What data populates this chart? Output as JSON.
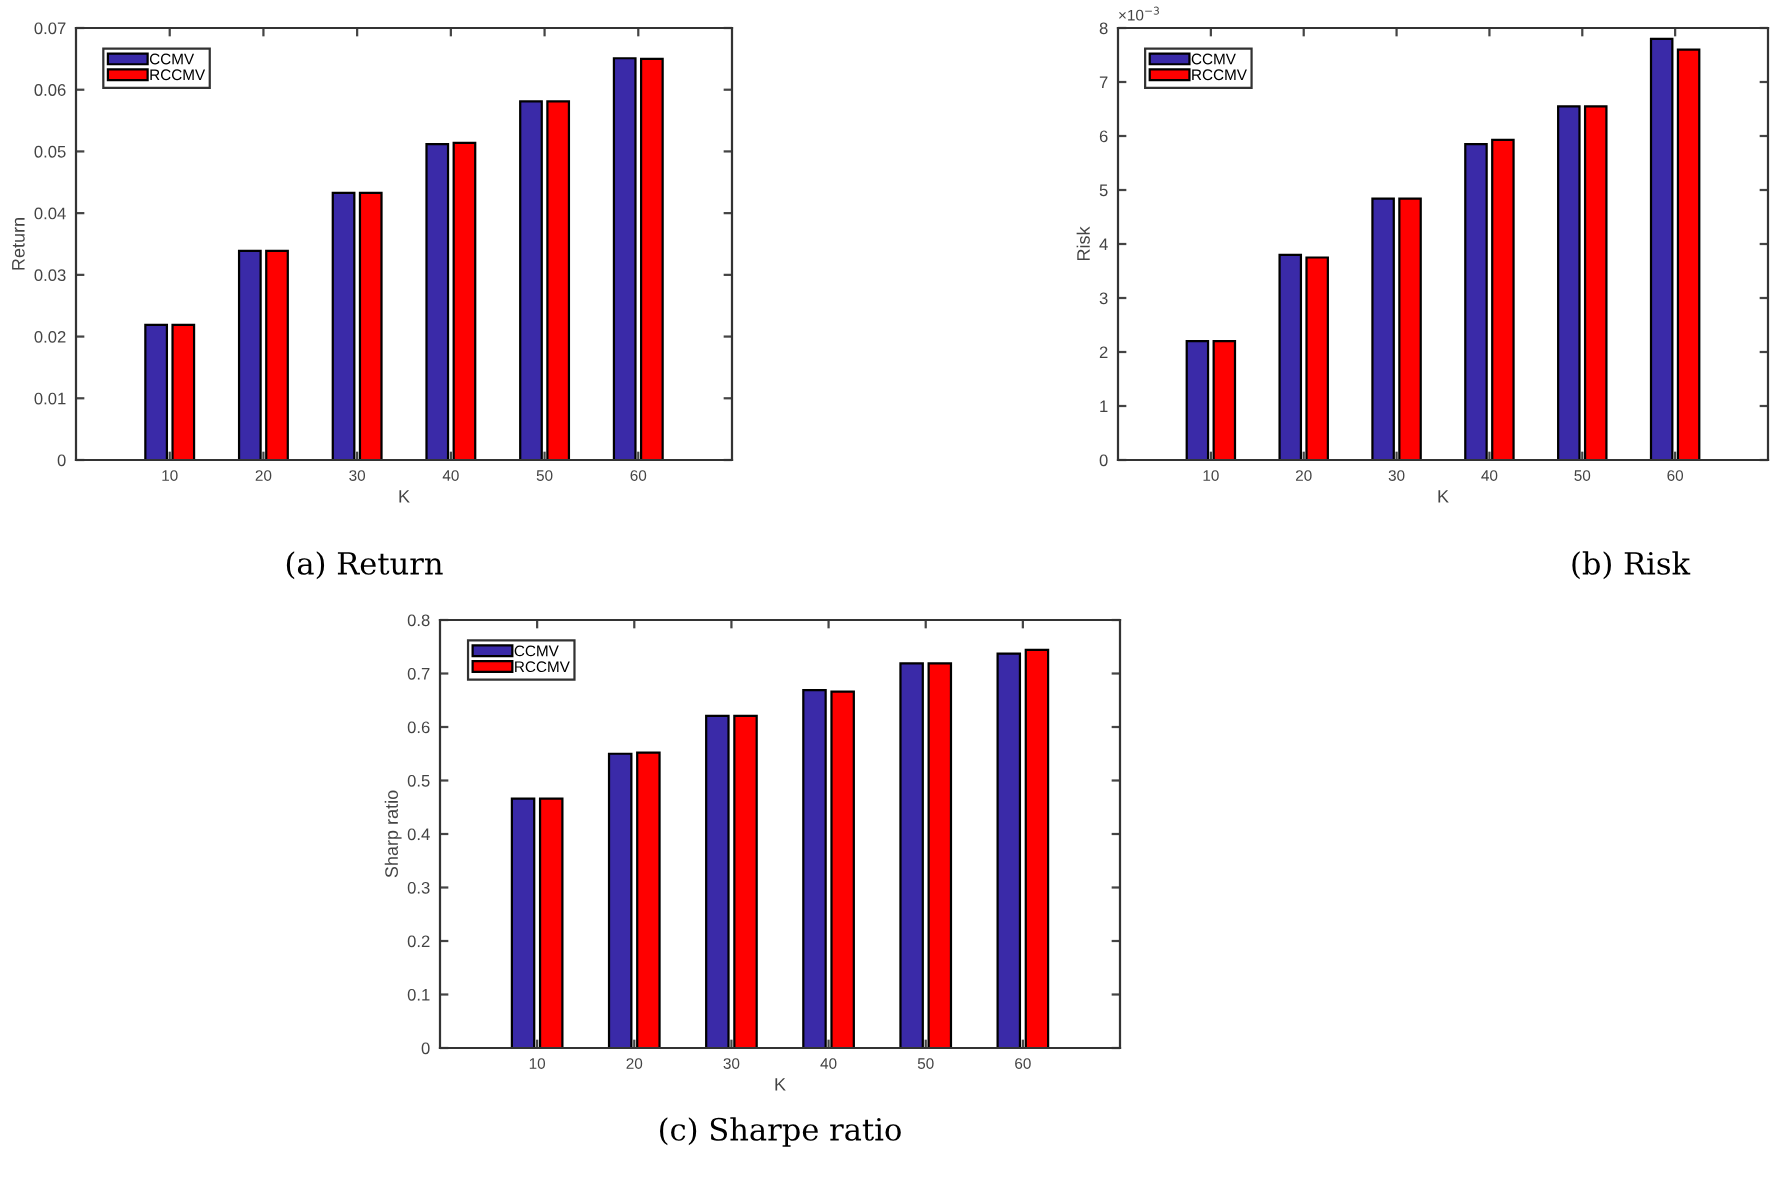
{
  "chart_data": [
    {
      "type": "bar",
      "xlabel": "K",
      "ylabel": "Return",
      "categories": [
        "10",
        "20",
        "30",
        "40",
        "50",
        "60"
      ],
      "series": [
        {
          "name": "CCMV",
          "color": "#3a2aa8",
          "values": [
            0.0219,
            0.0339,
            0.0433,
            0.0512,
            0.0581,
            0.0651
          ]
        },
        {
          "name": "RCCMV",
          "color": "#ff0000",
          "values": [
            0.0219,
            0.0339,
            0.0433,
            0.0514,
            0.0581,
            0.065
          ]
        }
      ],
      "ylim": [
        0,
        0.07
      ],
      "yticks": [
        0,
        0.01,
        0.02,
        0.03,
        0.04,
        0.05,
        0.06,
        0.07
      ],
      "legend": "top left",
      "grid": false,
      "annotations": [
        "(a) Return"
      ]
    },
    {
      "type": "bar",
      "xlabel": "K",
      "ylabel": "Risk",
      "categories": [
        "10",
        "20",
        "30",
        "40",
        "50",
        "60"
      ],
      "series": [
        {
          "name": "CCMV",
          "color": "#3a2aa8",
          "values": [
            2.2,
            3.8,
            4.84,
            5.85,
            6.55,
            7.8
          ]
        },
        {
          "name": "RCCMV",
          "color": "#ff0000",
          "values": [
            2.2,
            3.75,
            4.84,
            5.93,
            6.55,
            7.6
          ]
        }
      ],
      "ylim": [
        0,
        8
      ],
      "yticks": [
        0,
        1,
        2,
        3,
        4,
        5,
        6,
        7,
        8
      ],
      "legend": "top left",
      "grid": false,
      "annotations": [
        "(b) Risk",
        "×10$^{−3}$"
      ]
    },
    {
      "type": "bar",
      "xlabel": "K",
      "ylabel": "Sharp ratio",
      "categories": [
        "10",
        "20",
        "30",
        "40",
        "50",
        "60"
      ],
      "series": [
        {
          "name": "CCMV",
          "color": "#3a2aa8",
          "values": [
            0.466,
            0.55,
            0.621,
            0.669,
            0.719,
            0.737
          ]
        },
        {
          "name": "RCCMV",
          "color": "#ff0000",
          "values": [
            0.466,
            0.552,
            0.621,
            0.666,
            0.719,
            0.744
          ]
        }
      ],
      "ylim": [
        0,
        0.8
      ],
      "yticks": [
        0,
        0.1,
        0.2,
        0.3,
        0.4,
        0.5,
        0.6,
        0.7,
        0.8
      ],
      "legend": "top left",
      "grid": false,
      "annotations": [
        "(c) Sharpe ratio"
      ]
    }
  ]
}
